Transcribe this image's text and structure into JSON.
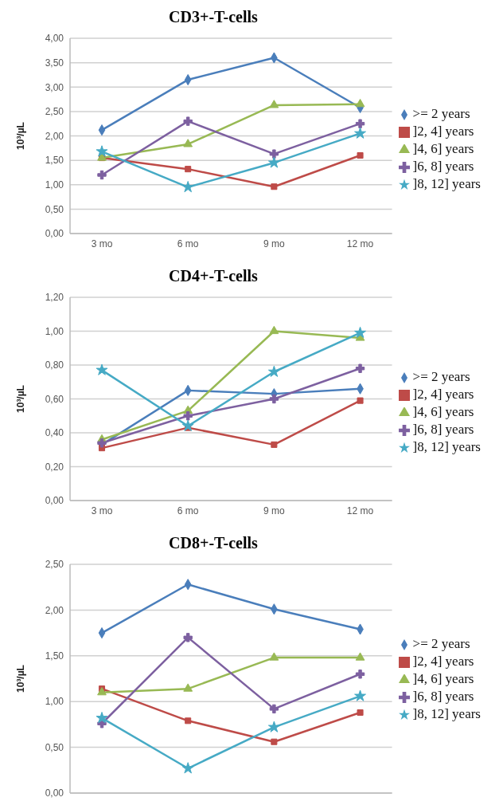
{
  "chart_data": [
    {
      "type": "line",
      "title": "CD3+-T-cells",
      "ylabel": "10³/µL",
      "categories": [
        "3 mo",
        "6 mo",
        "9 mo",
        "12 mo"
      ],
      "ylim": [
        0,
        4
      ],
      "yticks": [
        {
          "value": 0,
          "label": "0,00"
        },
        {
          "value": 0.5,
          "label": "0,50"
        },
        {
          "value": 1,
          "label": "1,00"
        },
        {
          "value": 1.5,
          "label": "1,50"
        },
        {
          "value": 2,
          "label": "2,00"
        },
        {
          "value": 2.5,
          "label": "2,50"
        },
        {
          "value": 3,
          "label": "3,00"
        },
        {
          "value": 3.5,
          "label": "3,50"
        },
        {
          "value": 4,
          "label": "4,00"
        }
      ],
      "grid": "y",
      "legend": "right",
      "series": [
        {
          "name": ">= 2 years",
          "color": "#4a7ebb",
          "marker": "diamond",
          "values": [
            2.12,
            3.15,
            3.6,
            2.58
          ]
        },
        {
          "name": "]2, 4] years",
          "color": "#be4b48",
          "marker": "square",
          "values": [
            1.55,
            1.32,
            0.96,
            1.6
          ]
        },
        {
          "name": "]4, 6] years",
          "color": "#98b954",
          "marker": "triangle",
          "values": [
            1.55,
            1.83,
            2.63,
            2.65
          ]
        },
        {
          "name": "]6, 8] years",
          "color": "#7d60a0",
          "marker": "cross",
          "values": [
            1.2,
            2.3,
            1.63,
            2.25
          ]
        },
        {
          "name": "]8, 12] years",
          "color": "#46aac5",
          "marker": "star",
          "values": [
            1.68,
            0.95,
            1.45,
            2.05
          ]
        }
      ]
    },
    {
      "type": "line",
      "title": "CD4+-T-cells",
      "ylabel": "10³/µL",
      "categories": [
        "3 mo",
        "6 mo",
        "9 mo",
        "12 mo"
      ],
      "ylim": [
        0,
        1.2
      ],
      "yticks": [
        {
          "value": 0,
          "label": "0,00"
        },
        {
          "value": 0.2,
          "label": "0,20"
        },
        {
          "value": 0.4,
          "label": "0,40"
        },
        {
          "value": 0.6,
          "label": "0,60"
        },
        {
          "value": 0.8,
          "label": "0,80"
        },
        {
          "value": 1,
          "label": "1,00"
        },
        {
          "value": 1.2,
          "label": "1,20"
        }
      ],
      "grid": "y",
      "legend": "right",
      "series": [
        {
          "name": ">= 2 years",
          "color": "#4a7ebb",
          "marker": "diamond",
          "values": [
            0.33,
            0.65,
            0.63,
            0.66
          ]
        },
        {
          "name": "]2, 4] years",
          "color": "#be4b48",
          "marker": "square",
          "values": [
            0.31,
            0.43,
            0.33,
            0.59
          ]
        },
        {
          "name": "]4, 6] years",
          "color": "#98b954",
          "marker": "triangle",
          "values": [
            0.36,
            0.53,
            1.0,
            0.96
          ]
        },
        {
          "name": "]6, 8] years",
          "color": "#7d60a0",
          "marker": "cross",
          "values": [
            0.34,
            0.5,
            0.6,
            0.78
          ]
        },
        {
          "name": "]8, 12] years",
          "color": "#46aac5",
          "marker": "star",
          "values": [
            0.77,
            0.44,
            0.76,
            0.99
          ]
        }
      ]
    },
    {
      "type": "line",
      "title": "CD8+-T-cells",
      "ylabel": "10³/µL",
      "categories": [
        null,
        null,
        null,
        null
      ],
      "tick_labels": "y",
      "ylim": [
        0,
        2.5
      ],
      "yticks": [
        {
          "value": 0,
          "label": "0,00"
        },
        {
          "value": 0.5,
          "label": "0,50"
        },
        {
          "value": 1,
          "label": "1,00"
        },
        {
          "value": 1.5,
          "label": "1,50"
        },
        {
          "value": 2,
          "label": "2,00"
        },
        {
          "value": 2.5,
          "label": "2,50"
        }
      ],
      "grid": "y",
      "legend": "right",
      "series": [
        {
          "name": ">= 2 years",
          "color": "#4a7ebb",
          "marker": "diamond",
          "values": [
            1.75,
            2.28,
            2.01,
            1.79
          ]
        },
        {
          "name": "]2, 4] years",
          "color": "#be4b48",
          "marker": "square",
          "values": [
            1.14,
            0.79,
            0.56,
            0.88
          ]
        },
        {
          "name": "]4, 6] years",
          "color": "#98b954",
          "marker": "triangle",
          "values": [
            1.1,
            1.14,
            1.48,
            1.48
          ]
        },
        {
          "name": "]6, 8] years",
          "color": "#7d60a0",
          "marker": "cross",
          "values": [
            0.76,
            1.7,
            0.92,
            1.3
          ]
        },
        {
          "name": "]8, 12] years",
          "color": "#46aac5",
          "marker": "star",
          "values": [
            0.82,
            0.27,
            0.72,
            1.06
          ]
        }
      ]
    }
  ]
}
